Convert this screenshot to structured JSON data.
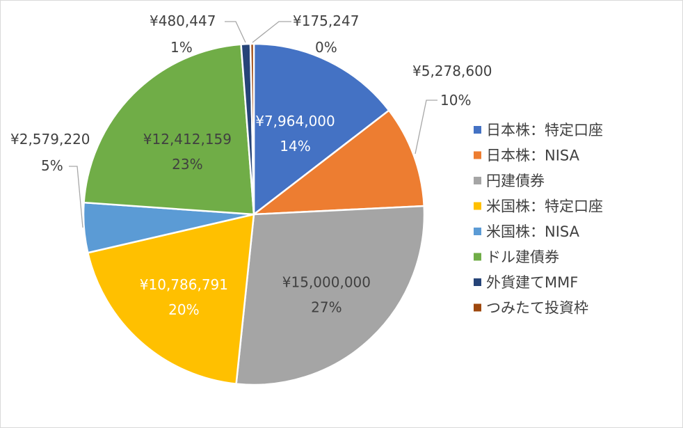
{
  "chart_data": {
    "type": "pie",
    "title": "",
    "currency_prefix": "¥",
    "slices": [
      {
        "name": "日本株：特定口座",
        "value": 7964000,
        "value_label": "¥7,964,000",
        "percent_label": "14%",
        "color": "#4472C4"
      },
      {
        "name": "日本株：NISA",
        "value": 5278600,
        "value_label": "¥5,278,600",
        "percent_label": "10%",
        "color": "#ED7D31"
      },
      {
        "name": "円建債券",
        "value": 15000000,
        "value_label": "¥15,000,000",
        "percent_label": "27%",
        "color": "#A5A5A5"
      },
      {
        "name": "米国株：特定口座",
        "value": 10786791,
        "value_label": "¥10,786,791",
        "percent_label": "20%",
        "color": "#FFC000"
      },
      {
        "name": "米国株：NISA",
        "value": 2579220,
        "value_label": "¥2,579,220",
        "percent_label": "5%",
        "color": "#5B9BD5"
      },
      {
        "name": "ドル建債券",
        "value": 12412159,
        "value_label": "¥12,412,159",
        "percent_label": "23%",
        "color": "#70AD47"
      },
      {
        "name": "外貨建てMMF",
        "value": 480447,
        "value_label": "¥480,447",
        "percent_label": "1%",
        "color": "#264478"
      },
      {
        "name": "つみたて投資枠",
        "value": 175247,
        "value_label": "¥175,247",
        "percent_label": "0%",
        "color": "#9E480E"
      }
    ],
    "legend_position": "right"
  }
}
